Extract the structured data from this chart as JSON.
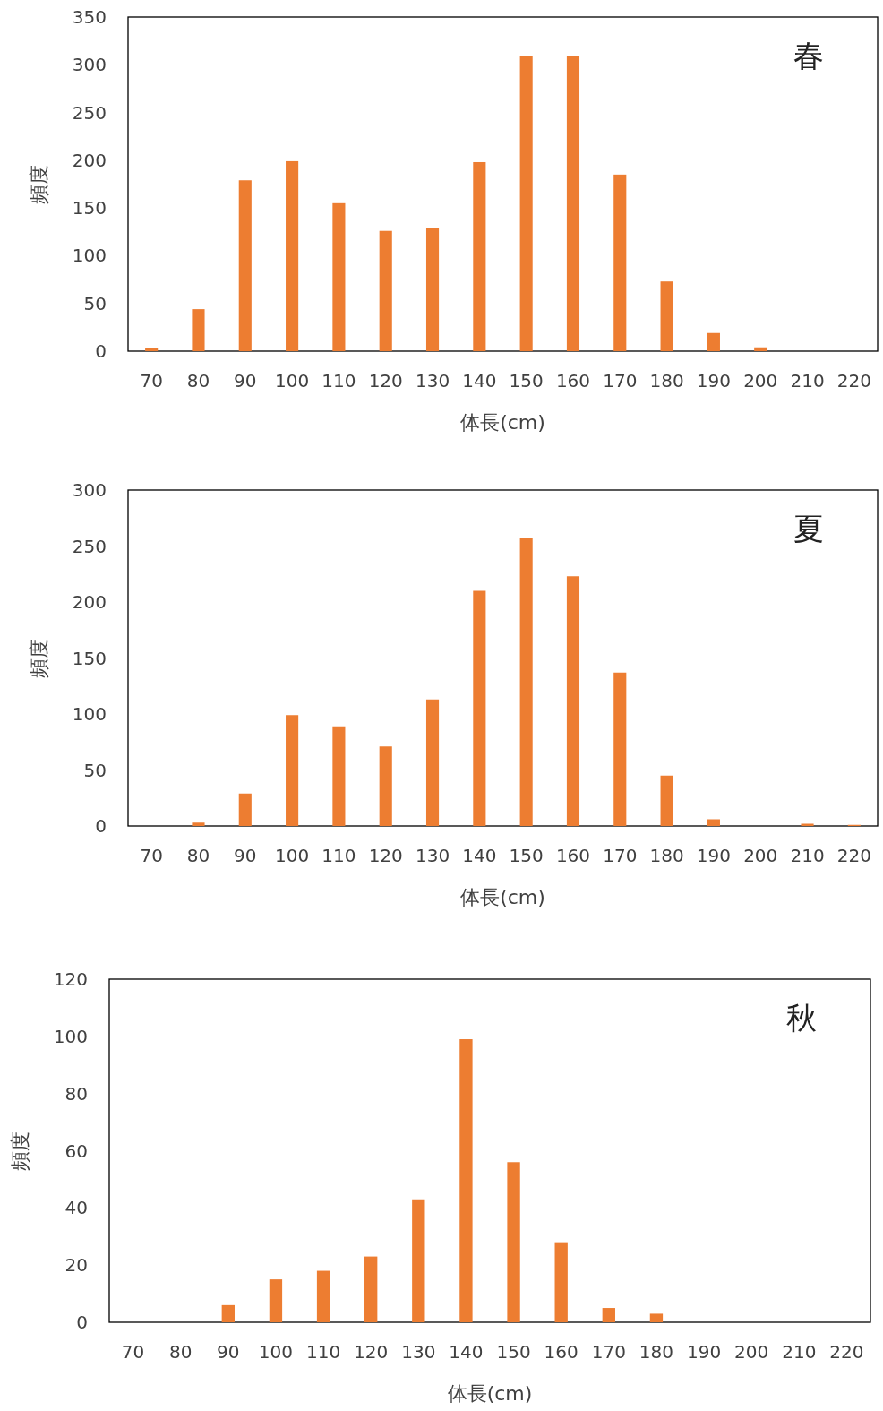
{
  "chart_data": [
    {
      "type": "bar",
      "title": "春",
      "xlabel": "体長(cm)",
      "ylabel": "頻度",
      "categories": [
        "70",
        "80",
        "90",
        "100",
        "110",
        "120",
        "130",
        "140",
        "150",
        "160",
        "170",
        "180",
        "190",
        "200",
        "210",
        "220"
      ],
      "values": [
        3,
        44,
        179,
        199,
        155,
        126,
        129,
        198,
        309,
        309,
        185,
        73,
        19,
        4,
        0,
        0
      ],
      "color": "#ed7d31",
      "ylim": [
        0,
        350
      ],
      "yticks": [
        0,
        50,
        100,
        150,
        200,
        250,
        300,
        350
      ]
    },
    {
      "type": "bar",
      "title": "夏",
      "xlabel": "体長(cm)",
      "ylabel": "頻度",
      "categories": [
        "70",
        "80",
        "90",
        "100",
        "110",
        "120",
        "130",
        "140",
        "150",
        "160",
        "170",
        "180",
        "190",
        "200",
        "210",
        "220"
      ],
      "values": [
        0,
        3,
        29,
        99,
        89,
        71,
        113,
        210,
        257,
        223,
        137,
        45,
        6,
        0,
        2,
        1
      ],
      "color": "#ed7d31",
      "ylim": [
        0,
        300
      ],
      "yticks": [
        0,
        50,
        100,
        150,
        200,
        250,
        300
      ]
    },
    {
      "type": "bar",
      "title": "秋",
      "xlabel": "体長(cm)",
      "ylabel": "頻度",
      "categories": [
        "70",
        "80",
        "90",
        "100",
        "110",
        "120",
        "130",
        "140",
        "150",
        "160",
        "170",
        "180",
        "190",
        "200",
        "210",
        "220"
      ],
      "values": [
        0,
        0,
        6,
        15,
        18,
        23,
        43,
        99,
        56,
        28,
        5,
        3,
        0,
        0,
        0,
        0
      ],
      "color": "#ed7d31",
      "ylim": [
        0,
        120
      ],
      "yticks": [
        0,
        20,
        40,
        60,
        80,
        100,
        120
      ]
    }
  ]
}
